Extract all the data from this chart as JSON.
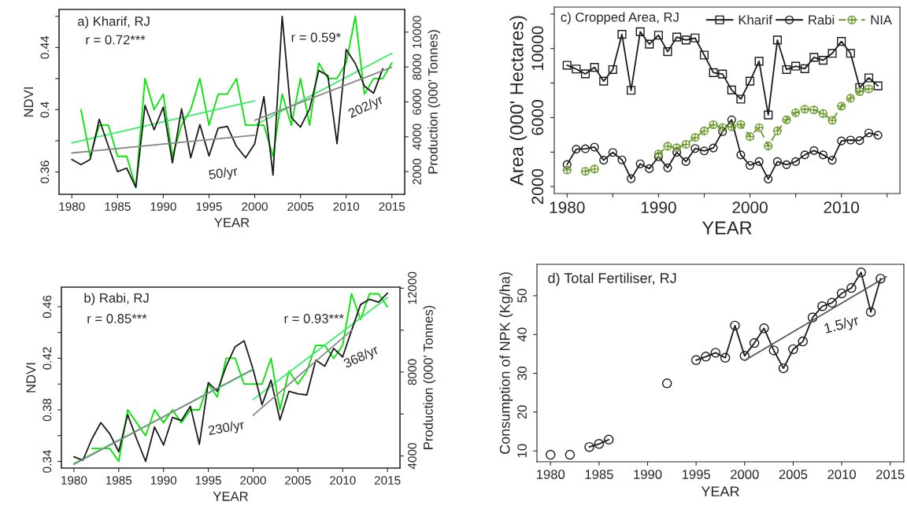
{
  "chart_data": [
    {
      "type": "line",
      "title": "a) Kharif, RJ",
      "xlabel": "YEAR",
      "ylabel": "NDVI",
      "y2label": "Production (000' Tonnes)",
      "x": [
        1980,
        1981,
        1982,
        1983,
        1984,
        1985,
        1986,
        1987,
        1988,
        1989,
        1990,
        1991,
        1992,
        1993,
        1994,
        1995,
        1996,
        1997,
        1998,
        1999,
        2000,
        2001,
        2002,
        2003,
        2004,
        2005,
        2006,
        2007,
        2008,
        2009,
        2010,
        2011,
        2012,
        2013,
        2014,
        2015
      ],
      "xlim": [
        1978.6,
        2016.4
      ],
      "xticks": [
        1980,
        1985,
        1990,
        1995,
        2000,
        2005,
        2010,
        2015
      ],
      "ylim": [
        0.3456,
        0.4644
      ],
      "yticks": [
        0.36,
        {
          "value": 0.38,
          "label": null
        },
        0.4,
        {
          "value": 0.42,
          "label": null
        },
        0.44,
        {
          "value": 0.46,
          "label": null
        }
      ],
      "y2lim": [
        700,
        11300
      ],
      "y2ticks": [
        2000,
        4000,
        6000,
        8000,
        10000
      ],
      "marker": "none",
      "line_style": "solid",
      "series": [
        {
          "color": "#00e600",
          "values": [
            null,
            0.4,
            0.37,
            0.39,
            0.39,
            0.37,
            0.37,
            0.35,
            0.42,
            0.4,
            0.41,
            0.37,
            0.39,
            0.4,
            0.42,
            0.39,
            0.41,
            0.41,
            0.42,
            0.39,
            0.39,
            0.39,
            0.37,
            0.41,
            0.39,
            0.42,
            0.39,
            0.43,
            0.42,
            0.42,
            0.43,
            0.46,
            0.41,
            0.42,
            0.42,
            0.43
          ]
        },
        {
          "color": "#1a1a1a",
          "axis": "y2",
          "values": [
            2700,
            2400,
            2700,
            5000,
            3450,
            2000,
            2200,
            1100,
            5800,
            4400,
            5700,
            2500,
            5600,
            2800,
            4700,
            2900,
            4500,
            4600,
            3450,
            2800,
            3600,
            6300,
            1800,
            10900,
            5100,
            4550,
            5600,
            7800,
            7500,
            3600,
            9000,
            8200,
            6900,
            6500,
            7900,
            null
          ]
        },
        {
          "type": "line",
          "color": "#33ee66",
          "x": [
            1980,
            2000
          ],
          "values": [
            0.3787,
            0.4057
          ]
        },
        {
          "type": "line",
          "color": "#33ee66",
          "x": [
            2000,
            2015
          ],
          "values": [
            0.39,
            0.4362
          ]
        },
        {
          "type": "line",
          "color": "#888888",
          "axis": "y2",
          "x": [
            1980,
            2000
          ],
          "values": [
            3070,
            4090
          ]
        },
        {
          "type": "line",
          "color": "#888888",
          "axis": "y2",
          "x": [
            2000,
            2015
          ],
          "values": [
            4950,
            7990
          ]
        }
      ],
      "annotations": [
        "r = 0.72***",
        "r = 0.59*",
        "50/yr",
        "202/yr"
      ]
    },
    {
      "type": "line",
      "title": "c) Cropped Area, RJ",
      "xlabel": "YEAR",
      "ylabel": "Area (000' Hectares)",
      "x": [
        1980,
        1981,
        1982,
        1983,
        1984,
        1985,
        1986,
        1987,
        1988,
        1989,
        1990,
        1991,
        1992,
        1993,
        1994,
        1995,
        1996,
        1997,
        1998,
        1999,
        2000,
        2001,
        2002,
        2003,
        2004,
        2005,
        2006,
        2007,
        2008,
        2009,
        2010,
        2011,
        2012,
        2013,
        2014
      ],
      "xlim": [
        1978.6,
        2016.4
      ],
      "xticks": [
        1980,
        {
          "value": 1985,
          "label": null
        },
        1990,
        {
          "value": 1995,
          "label": null
        },
        2000,
        {
          "value": 2005,
          "label": null
        },
        2010,
        {
          "value": 2015,
          "label": null
        }
      ],
      "ylim": [
        1600,
        12400
      ],
      "yticks": [
        2000,
        {
          "value": 4000,
          "label": null
        },
        6000,
        {
          "value": 8000,
          "label": null
        },
        10000,
        {
          "value": 12000,
          "label": null
        }
      ],
      "legend": "top right",
      "series": [
        {
          "name": "Kharif",
          "color": "#1a1a1a",
          "marker": "square",
          "line_style": "solid",
          "values": [
            9030,
            8810,
            8530,
            8910,
            8110,
            8780,
            10820,
            7580,
            10970,
            10250,
            10770,
            9820,
            10660,
            10490,
            10610,
            9620,
            8600,
            8520,
            7600,
            7070,
            8110,
            9260,
            6150,
            10490,
            8780,
            8980,
            8830,
            9490,
            9320,
            9720,
            10410,
            9720,
            7740,
            8300,
            7840
          ]
        },
        {
          "name": "Rabi",
          "color": "#1a1a1a",
          "marker": "circle",
          "line_style": "solid",
          "values": [
            3280,
            4170,
            4190,
            4290,
            3530,
            3980,
            3550,
            2460,
            3320,
            3040,
            3730,
            3090,
            3990,
            3450,
            4210,
            4070,
            4240,
            5190,
            5870,
            3840,
            3230,
            3450,
            2440,
            3450,
            3270,
            3450,
            3840,
            4090,
            3840,
            3530,
            4650,
            4700,
            4670,
            5110,
            4980
          ]
        },
        {
          "name": "NIA",
          "color": "#6a9a2a",
          "marker": "cross",
          "line_style": "dashed",
          "values": [
            2970,
            null,
            2890,
            3020,
            null,
            null,
            null,
            null,
            null,
            null,
            3890,
            4340,
            4250,
            4450,
            4850,
            5230,
            5590,
            5420,
            5470,
            5600,
            4900,
            5420,
            4350,
            5230,
            5870,
            6280,
            6490,
            6440,
            6230,
            5840,
            6660,
            7120,
            7500,
            7660,
            null
          ]
        }
      ]
    },
    {
      "type": "line",
      "title": "b) Rabi, RJ",
      "xlabel": "YEAR",
      "ylabel": "NDVI",
      "y2label": "Production (000' Tonnes)",
      "x": [
        1980,
        1981,
        1982,
        1983,
        1984,
        1985,
        1986,
        1987,
        1988,
        1989,
        1990,
        1991,
        1992,
        1993,
        1994,
        1995,
        1996,
        1997,
        1998,
        1999,
        2000,
        2001,
        2002,
        2003,
        2004,
        2005,
        2006,
        2007,
        2008,
        2009,
        2010,
        2011,
        2012,
        2013,
        2014,
        2015
      ],
      "xlim": [
        1978.6,
        2016.4
      ],
      "xticks": [
        1980,
        1985,
        1990,
        1995,
        2000,
        2005,
        2010,
        2015
      ],
      "ylim": [
        0.3348,
        0.4752
      ],
      "yticks": [
        0.34,
        {
          "value": 0.36,
          "label": null
        },
        0.38,
        {
          "value": 0.4,
          "label": null
        },
        0.42,
        {
          "value": 0.44,
          "label": null
        },
        0.46
      ],
      "y2lim": [
        3420,
        12050
      ],
      "y2ticks": [
        4000,
        {
          "value": 6000,
          "label": null
        },
        8000,
        {
          "value": 10000,
          "label": null
        },
        12000
      ],
      "marker": "none",
      "line_style": "solid",
      "series": [
        {
          "color": "#00e600",
          "values": [
            null,
            null,
            0.35,
            0.35,
            0.35,
            0.34,
            0.38,
            0.37,
            0.36,
            0.38,
            0.37,
            0.38,
            0.37,
            0.38,
            0.38,
            0.4,
            0.39,
            0.42,
            0.42,
            0.4,
            0.4,
            0.4,
            0.42,
            0.38,
            0.41,
            0.4,
            0.41,
            0.43,
            0.43,
            0.42,
            0.43,
            0.47,
            0.45,
            0.47,
            0.47,
            0.46
          ]
        },
        {
          "color": "#1a1a1a",
          "axis": "y2",
          "values": [
            3960,
            3790,
            4810,
            5590,
            5060,
            4200,
            5970,
            4810,
            3740,
            5380,
            4520,
            5840,
            5690,
            6370,
            4550,
            7500,
            7080,
            8280,
            9210,
            9490,
            8140,
            6440,
            7620,
            5720,
            7080,
            6960,
            6910,
            8570,
            8280,
            9130,
            8720,
            9990,
            11220,
            11470,
            11330,
            11760
          ]
        },
        {
          "type": "line",
          "color": "#33ee66",
          "x": [
            1980,
            2000
          ],
          "values": [
            0.3384,
            0.411
          ]
        },
        {
          "type": "line",
          "color": "#33ee66",
          "x": [
            2000,
            2015
          ],
          "values": [
            0.388,
            0.4671
          ]
        },
        {
          "type": "line",
          "color": "#888888",
          "axis": "y2",
          "x": [
            1980,
            2000
          ],
          "values": [
            3600,
            8140
          ]
        },
        {
          "type": "line",
          "color": "#888888",
          "axis": "y2",
          "x": [
            2000,
            2011
          ],
          "values": [
            5940,
            9990
          ]
        }
      ],
      "annotations": [
        "r = 0.85***",
        "r = 0.93***",
        "230/yr",
        "368/yr"
      ]
    },
    {
      "type": "line",
      "title": "d) Total Fertiliser, RJ",
      "xlabel": "YEAR",
      "ylabel": "Consumption of NPK (Kg/ha)",
      "x": [
        1980,
        1981,
        1982,
        1983,
        1984,
        1985,
        1986,
        1987,
        1988,
        1989,
        1990,
        1991,
        1992,
        1993,
        1994,
        1995,
        1996,
        1997,
        1998,
        1999,
        2000,
        2001,
        2002,
        2003,
        2004,
        2005,
        2006,
        2007,
        2008,
        2009,
        2010,
        2011,
        2012,
        2013,
        2014
      ],
      "xlim": [
        1978.6,
        2016.4
      ],
      "xticks": [
        1980,
        1985,
        1990,
        1995,
        2000,
        2005,
        2010,
        2015
      ],
      "ylim": [
        7.2,
        58.1
      ],
      "yticks": [
        10,
        20,
        30,
        40,
        50
      ],
      "series": [
        {
          "color": "#1a1a1a",
          "marker": "circle",
          "line_style": "solid",
          "values": [
            9.0,
            null,
            9.0,
            null,
            11.0,
            11.8,
            12.9,
            null,
            null,
            null,
            null,
            null,
            27.4,
            null,
            null,
            33.4,
            34.3,
            35.3,
            34.0,
            42.3,
            34.5,
            37.8,
            41.6,
            35.9,
            31.3,
            36.2,
            38.2,
            44.4,
            47.3,
            48.2,
            50.6,
            52.0,
            56.0,
            45.8,
            54.4
          ]
        },
        {
          "type": "line",
          "color": "#555555",
          "marker": "none",
          "line_style": "solid",
          "x": [
            2000,
            2014.6
          ],
          "values": [
            33.3,
            54.9
          ]
        }
      ],
      "annotations": [
        "1.5/yr"
      ]
    }
  ]
}
